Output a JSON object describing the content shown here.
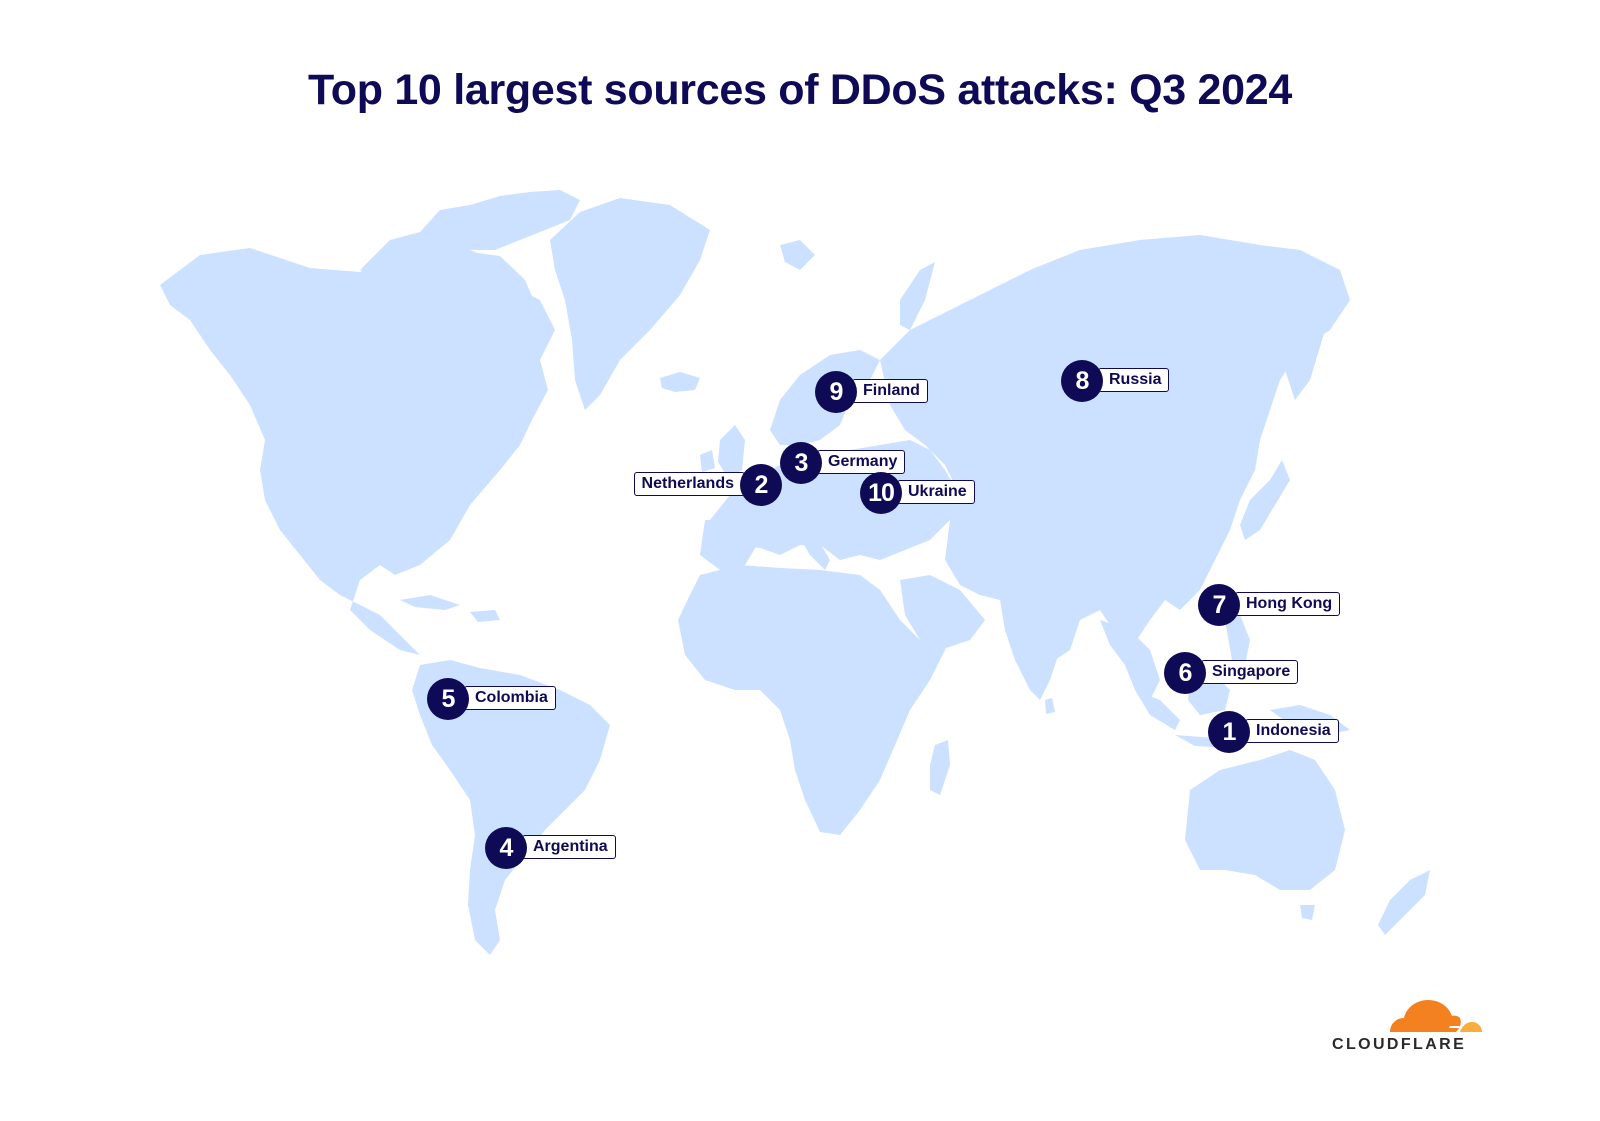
{
  "title": "Top 10 largest sources of DDoS attacks: Q3 2024",
  "colors": {
    "land": "#cce0ff",
    "marker": "#0f0a55",
    "label_border": "#0f0a55",
    "title": "#0f0a55",
    "logo_orange": "#f48120",
    "logo_light_orange": "#faad3f"
  },
  "markers": [
    {
      "rank": "1",
      "country": "Indonesia"
    },
    {
      "rank": "2",
      "country": "Netherlands"
    },
    {
      "rank": "3",
      "country": "Germany"
    },
    {
      "rank": "4",
      "country": "Argentina"
    },
    {
      "rank": "5",
      "country": "Colombia"
    },
    {
      "rank": "6",
      "country": "Singapore"
    },
    {
      "rank": "7",
      "country": "Hong Kong"
    },
    {
      "rank": "8",
      "country": "Russia"
    },
    {
      "rank": "9",
      "country": "Finland"
    },
    {
      "rank": "10",
      "country": "Ukraine"
    }
  ],
  "logo": {
    "text": "CLOUDFLARE",
    "icon": "cloud-logo-icon"
  }
}
